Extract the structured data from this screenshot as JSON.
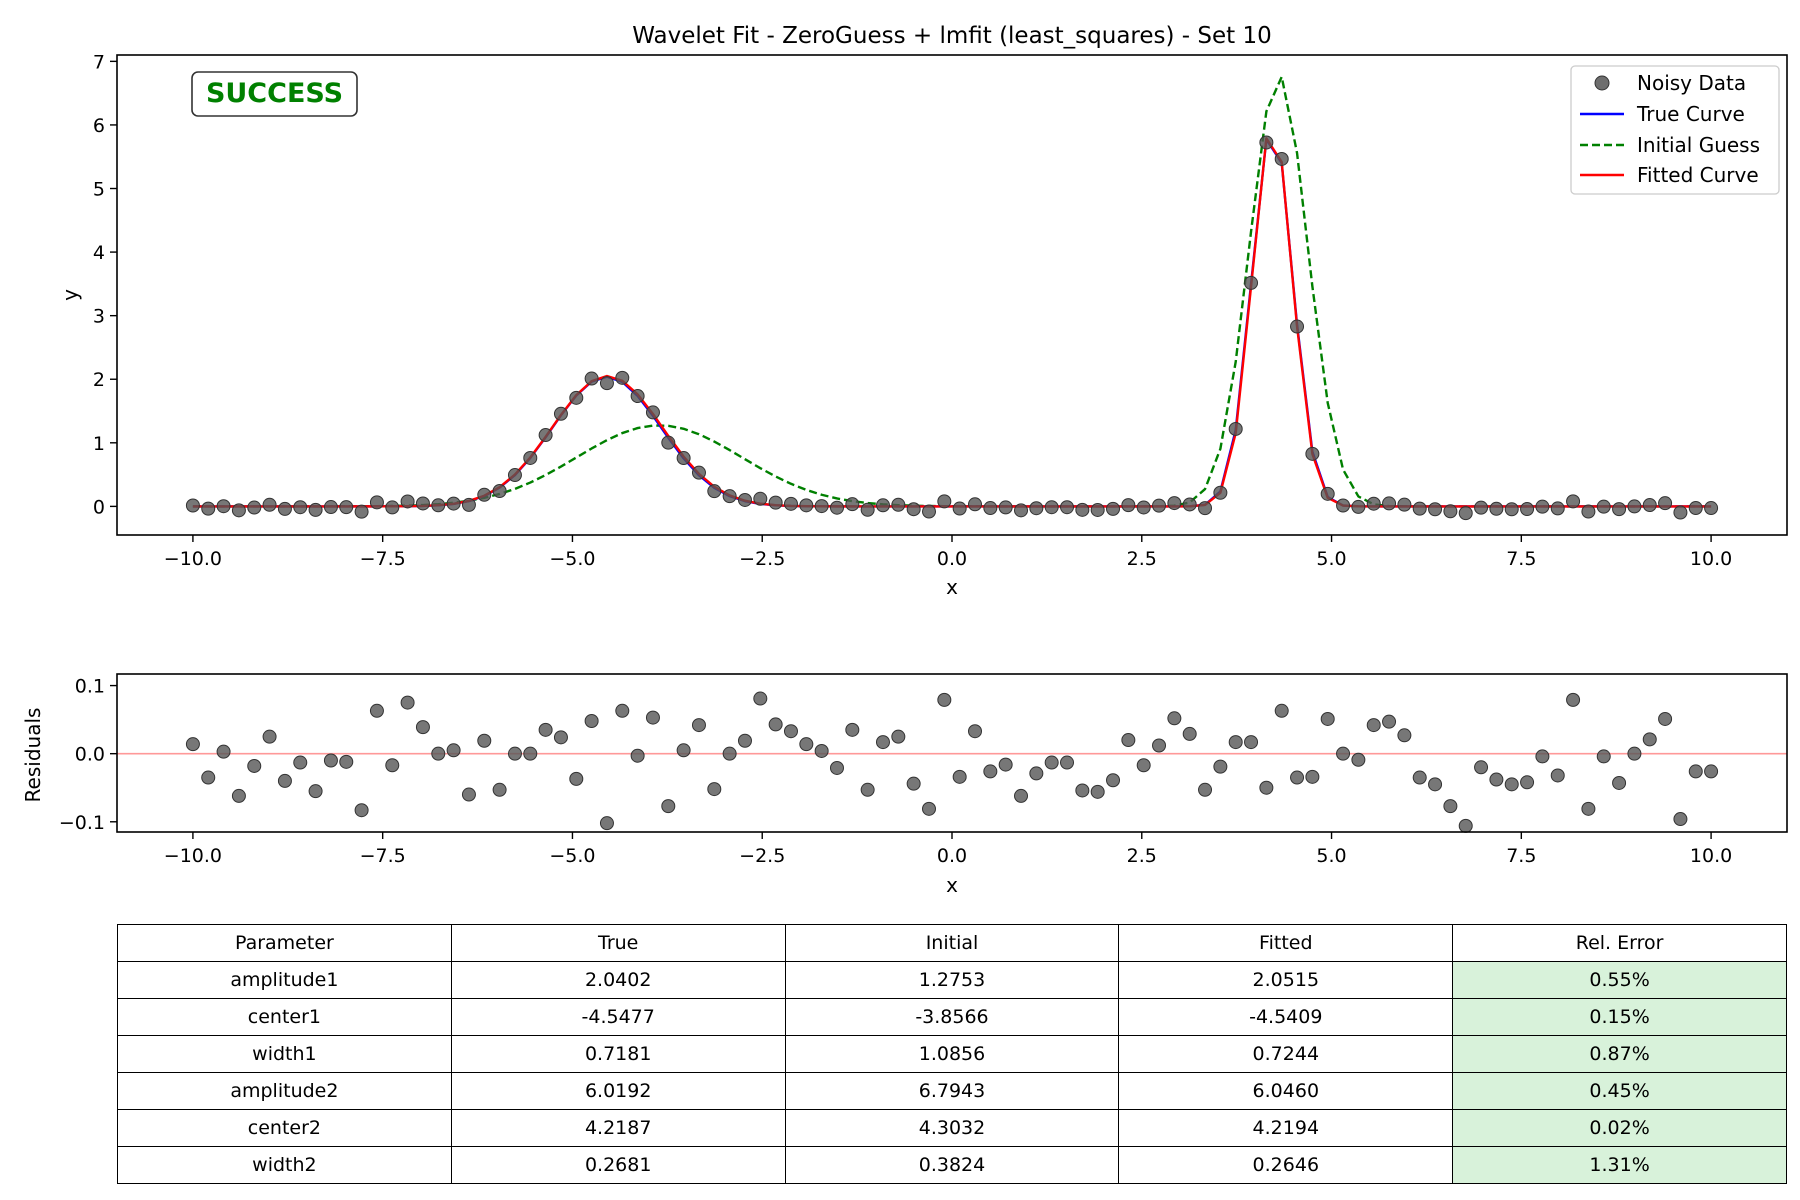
{
  "chart_data": [
    {
      "type": "line",
      "title": "Wavelet Fit - ZeroGuess + lmfit (least_squares) - Set 10",
      "xlabel": "x",
      "ylabel": "y",
      "xlim": [
        -11.0,
        11.0
      ],
      "ylim": [
        -0.45,
        7.1
      ],
      "xticks": [
        -10.0,
        -7.5,
        -5.0,
        -2.5,
        0.0,
        2.5,
        5.0,
        7.5,
        10.0
      ],
      "xtick_labels": [
        "−10.0",
        "−7.5",
        "−5.0",
        "−2.5",
        "0.0",
        "2.5",
        "5.0",
        "7.5",
        "10.0"
      ],
      "yticks": [
        0,
        1,
        2,
        3,
        4,
        5,
        6,
        7
      ],
      "ytick_labels": [
        "0",
        "1",
        "2",
        "3",
        "4",
        "5",
        "6",
        "7"
      ],
      "grid": false,
      "legend_position": "top-right",
      "badge": "SUCCESS",
      "colors": {
        "badge": "#008000",
        "noisy": "#555555",
        "true": "#0000ff",
        "initial": "#008000",
        "fitted": "#ff0000"
      },
      "series": [
        {
          "name": "Noisy Data",
          "style": "markers",
          "x_range": [
            -10,
            10
          ],
          "n_points": 100,
          "residuals_series": "Residuals"
        },
        {
          "name": "True Curve",
          "style": "solid",
          "model": "gaussian_sum",
          "amplitude1": 2.0402,
          "center1": -4.5477,
          "width1": 0.7181,
          "amplitude2": 6.0192,
          "center2": 4.2187,
          "width2": 0.2681
        },
        {
          "name": "Initial Guess",
          "style": "dashed",
          "model": "gaussian_sum",
          "amplitude1": 1.2753,
          "center1": -3.8566,
          "width1": 1.0856,
          "amplitude2": 6.7943,
          "center2": 4.3032,
          "width2": 0.3824
        },
        {
          "name": "Fitted Curve",
          "style": "solid",
          "model": "gaussian_sum",
          "amplitude1": 2.0515,
          "center1": -4.5409,
          "width1": 0.7244,
          "amplitude2": 6.046,
          "center2": 4.2194,
          "width2": 0.2646
        }
      ]
    },
    {
      "type": "scatter",
      "xlabel": "x",
      "ylabel": "Residuals",
      "xlim": [
        -11.0,
        11.0
      ],
      "ylim": [
        -0.115,
        0.117
      ],
      "xticks": [
        -10.0,
        -7.5,
        -5.0,
        -2.5,
        0.0,
        2.5,
        5.0,
        7.5,
        10.0
      ],
      "xtick_labels": [
        "−10.0",
        "−7.5",
        "−5.0",
        "−2.5",
        "0.0",
        "2.5",
        "5.0",
        "7.5",
        "10.0"
      ],
      "yticks": [
        -0.1,
        0.0,
        0.1
      ],
      "ytick_labels": [
        "−0.1",
        "0.0",
        "0.1"
      ],
      "zero_line_color": "#ff9999",
      "series": [
        {
          "name": "Residuals",
          "x_range": [
            -10,
            10
          ],
          "values": [
            0.014,
            -0.035,
            0.003,
            -0.062,
            -0.018,
            0.025,
            -0.04,
            -0.013,
            -0.055,
            -0.01,
            -0.012,
            -0.083,
            0.063,
            -0.017,
            0.075,
            0.039,
            0.0,
            0.005,
            -0.06,
            0.019,
            -0.053,
            0.0,
            0.0,
            0.035,
            0.024,
            -0.037,
            0.048,
            -0.102,
            0.063,
            -0.003,
            0.053,
            -0.077,
            0.005,
            0.042,
            -0.052,
            0.0,
            0.019,
            0.081,
            0.043,
            0.033,
            0.014,
            0.004,
            -0.021,
            0.035,
            -0.053,
            0.017,
            0.025,
            -0.044,
            -0.081,
            0.079,
            -0.034,
            0.033,
            -0.026,
            -0.016,
            -0.062,
            -0.029,
            -0.013,
            -0.013,
            -0.054,
            -0.056,
            -0.039,
            0.02,
            -0.017,
            0.012,
            0.052,
            0.029,
            -0.053,
            -0.019,
            0.017,
            0.017,
            -0.05,
            0.063,
            -0.035,
            -0.034,
            0.051,
            0.0,
            -0.009,
            0.042,
            0.047,
            0.027,
            -0.035,
            -0.045,
            -0.077,
            -0.106,
            -0.02,
            -0.038,
            -0.045,
            -0.042,
            -0.004,
            -0.032,
            0.079,
            -0.081,
            -0.004,
            -0.043,
            0.0,
            0.021,
            0.051,
            -0.096,
            -0.026,
            -0.026
          ]
        }
      ]
    }
  ],
  "table": {
    "headers": [
      "Parameter",
      "True",
      "Initial",
      "Fitted",
      "Rel. Error"
    ],
    "rows": [
      [
        "amplitude1",
        "2.0402",
        "1.2753",
        "2.0515",
        "0.55%"
      ],
      [
        "center1",
        "-4.5477",
        "-3.8566",
        "-4.5409",
        "0.15%"
      ],
      [
        "width1",
        "0.7181",
        "1.0856",
        "0.7244",
        "0.87%"
      ],
      [
        "amplitude2",
        "6.0192",
        "6.7943",
        "6.0460",
        "0.45%"
      ],
      [
        "center2",
        "4.2187",
        "4.3032",
        "4.2194",
        "0.02%"
      ],
      [
        "width2",
        "0.2681",
        "0.3824",
        "0.2646",
        "1.31%"
      ]
    ],
    "error_cell_color": "#d8f2da"
  }
}
